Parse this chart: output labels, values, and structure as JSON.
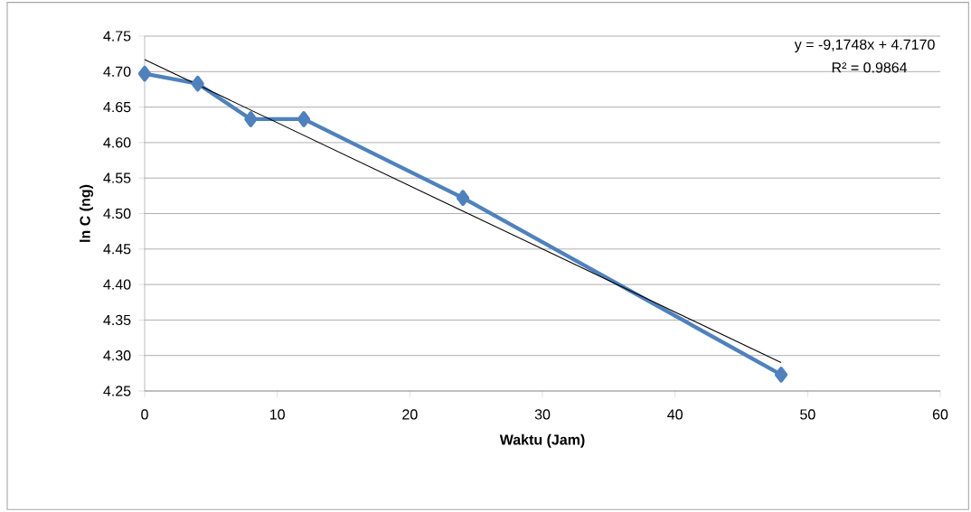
{
  "chart_data": {
    "type": "line",
    "xlabel": "Waktu (Jam)",
    "ylabel": "ln C (ng)",
    "xlim": [
      0,
      60
    ],
    "ylim": [
      4.25,
      4.75
    ],
    "xticks": [
      0,
      10,
      20,
      30,
      40,
      50,
      60
    ],
    "yticks": [
      {
        "value": 4.25,
        "label": "4.25"
      },
      {
        "value": 4.3,
        "label": "4.30"
      },
      {
        "value": 4.35,
        "label": "4.35"
      },
      {
        "value": 4.4,
        "label": "4.40"
      },
      {
        "value": 4.45,
        "label": "4.45"
      },
      {
        "value": 4.5,
        "label": "4.50"
      },
      {
        "value": 4.55,
        "label": "4.55"
      },
      {
        "value": 4.6,
        "label": "4.60"
      },
      {
        "value": 4.65,
        "label": "4.65"
      },
      {
        "value": 4.7,
        "label": "4.70"
      },
      {
        "value": 4.75,
        "label": "4.75"
      }
    ],
    "grid": "y",
    "marker": "diamond",
    "line_style": "solid",
    "series": [
      {
        "color": "#4f81bd",
        "x": [
          0,
          4,
          8,
          12,
          24,
          48
        ],
        "values": [
          4.697,
          4.683,
          4.633,
          4.633,
          4.522,
          4.273
        ]
      },
      {
        "color": "#000000",
        "marker": "none",
        "x": [
          0,
          48
        ],
        "values": [
          4.717,
          4.29
        ]
      }
    ],
    "annotations": [
      "y = -9,1748x + 4.7170",
      "R² = 0.9864"
    ]
  }
}
